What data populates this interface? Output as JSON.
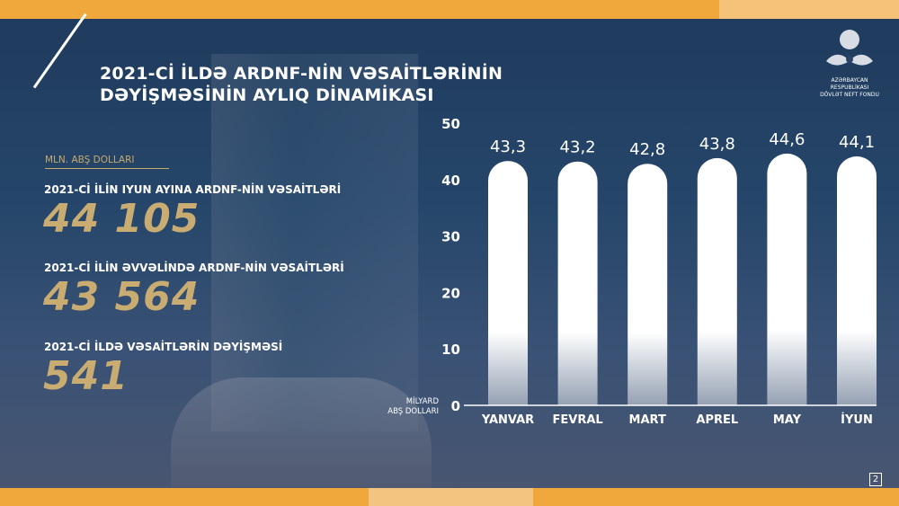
{
  "title": {
    "line1": "2021-Cİ İLDƏ ARDNF-NİN VƏSAİTLƏRİNİN",
    "line2": "DƏYİŞMƏSİNİN AYLIQ DİNAMİKASI"
  },
  "logo": {
    "line1": "AZƏRBAYCAN RESPUBLİKASI",
    "line2": "DÖVLƏT NEFT FONDU"
  },
  "unit_label": "MLN. ABŞ DOLLARI",
  "stats": [
    {
      "label": "2021-Cİ İLİN IYUN AYINA ARDNF-NİN VƏSAİTLƏRİ",
      "value": "44 105"
    },
    {
      "label": "2021-Cİ İLİN ƏVVƏLİNDƏ ARDNF-NİN VƏSAİTLƏRİ",
      "value": "43 564"
    },
    {
      "label": "2021-Cİ İLDƏ VƏSAİTLƏRİN DƏYİŞMƏSİ",
      "value": "541"
    }
  ],
  "page_number": "2",
  "colors": {
    "accent": "#f0a83c",
    "gold": "#c9ac72",
    "background": "#1f3a5c"
  },
  "chart_data": {
    "type": "bar",
    "categories": [
      "YANVAR",
      "FEVRAL",
      "MART",
      "APREL",
      "MAY",
      "İYUN"
    ],
    "values": [
      43.3,
      43.2,
      42.8,
      43.8,
      44.6,
      44.1
    ],
    "value_labels": [
      "43,3",
      "43,2",
      "42,8",
      "43,8",
      "44,6",
      "44,1"
    ],
    "ylabel_line1": "MİLYARD",
    "ylabel_line2": "ABŞ DOLLARI",
    "ylim": [
      0,
      50
    ],
    "yticks": [
      0,
      10,
      20,
      30,
      40,
      50
    ],
    "grid": false
  }
}
